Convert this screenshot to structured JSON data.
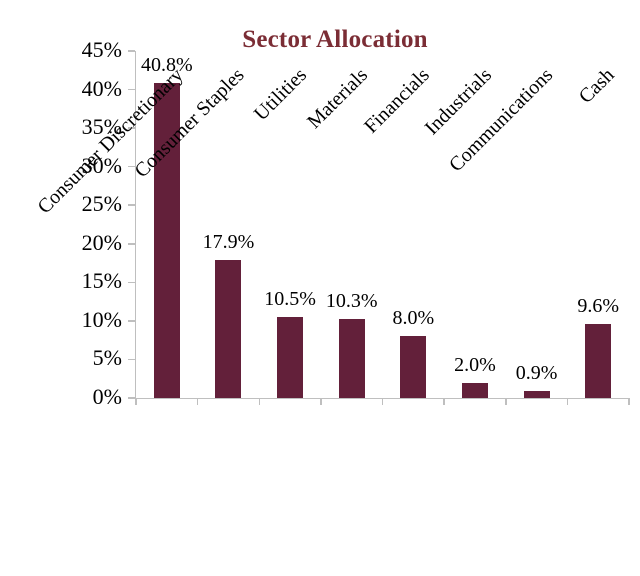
{
  "chart_data": {
    "type": "bar",
    "title": "Sector Allocation",
    "categories": [
      "Consumer Discretionary",
      "Consumer Staples",
      "Utilities",
      "Materials",
      "Financials",
      "Industrials",
      "Communications",
      "Cash"
    ],
    "values": [
      40.8,
      17.9,
      10.5,
      10.3,
      8.0,
      2.0,
      0.9,
      9.6
    ],
    "value_labels": [
      "40.8%",
      "17.9%",
      "10.5%",
      "10.3%",
      "8.0%",
      "2.0%",
      "0.9%",
      "9.6%"
    ],
    "xlabel": "",
    "ylabel": "",
    "ylim": [
      0,
      45
    ],
    "ytick_values": [
      0,
      5,
      10,
      15,
      20,
      25,
      30,
      35,
      40,
      45
    ],
    "ytick_labels": [
      "0%",
      "5%",
      "10%",
      "15%",
      "20%",
      "25%",
      "30%",
      "35%",
      "40%",
      "45%"
    ],
    "grid": false,
    "legend_position": "none",
    "bar_color": "#63203A",
    "title_color": "#7B2D35",
    "axis_color": "#BFBFBF",
    "text_color": "#000000"
  }
}
